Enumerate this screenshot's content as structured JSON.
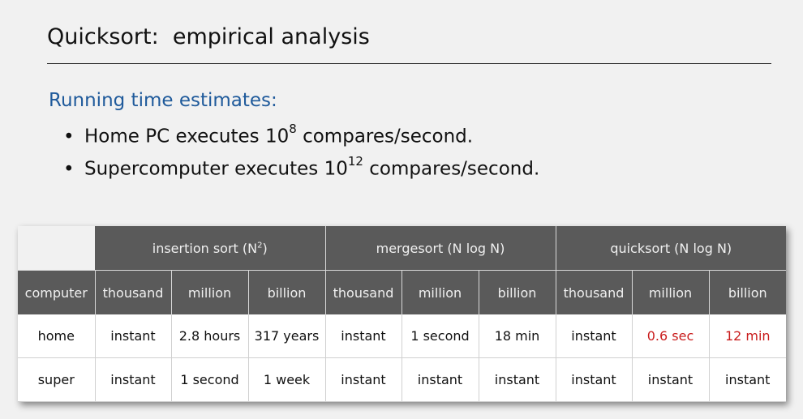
{
  "slide": {
    "title": "Quicksort:  empirical analysis",
    "subheading": "Running time estimates:",
    "bullets": [
      {
        "prefix": "Home PC executes 10",
        "exponent": "8",
        "suffix": " compares/second."
      },
      {
        "prefix": "Supercomputer executes 10",
        "exponent": "12",
        "suffix": " compares/second."
      }
    ]
  },
  "table": {
    "groups": [
      {
        "label": "insertion sort (N",
        "exponent": "2",
        "label_suffix": ")"
      },
      {
        "label": "mergesort (N log N)"
      },
      {
        "label": "quicksort (N log N)"
      }
    ],
    "subheaders": [
      "computer",
      "thousand",
      "million",
      "billion",
      "thousand",
      "million",
      "billion",
      "thousand",
      "million",
      "billion"
    ],
    "rows": [
      {
        "cells": [
          "home",
          "instant",
          "2.8 hours",
          "317 years",
          "instant",
          "1 second",
          "18 min",
          "instant",
          "0.6 sec",
          "12 min"
        ]
      },
      {
        "cells": [
          "super",
          "instant",
          "1 second",
          "1 week",
          "instant",
          "instant",
          "instant",
          "instant",
          "instant",
          "instant"
        ]
      }
    ],
    "highlight_color": "#c91c1c"
  }
}
